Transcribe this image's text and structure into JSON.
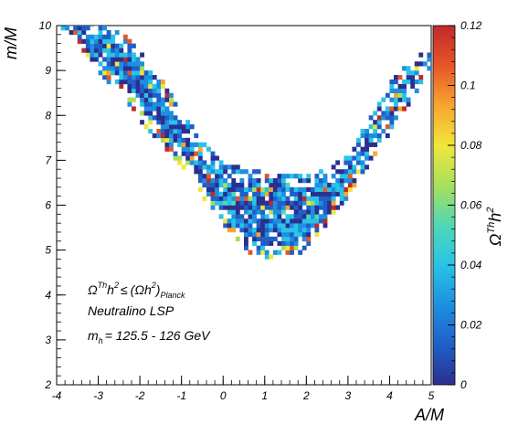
{
  "chart_data": {
    "type": "heatmap",
    "xlabel": "A/M",
    "ylabel": "m/M",
    "colorbar_label": "Ω Th h 2",
    "xlim": [
      -4,
      5
    ],
    "ylim": [
      2,
      10
    ],
    "zlim": [
      0,
      0.12
    ],
    "x_ticks": [
      "-4",
      "-3",
      "-2",
      "-1",
      "0",
      "1",
      "2",
      "3",
      "4",
      "5"
    ],
    "y_ticks": [
      "2",
      "3",
      "4",
      "5",
      "6",
      "7",
      "8",
      "9",
      "10"
    ],
    "z_ticks": [
      "0",
      "0.02",
      "0.04",
      "0.06",
      "0.08",
      "0.1",
      "0.12"
    ],
    "colormap": [
      "#2b2f8f",
      "#1f5fc8",
      "#1e8fe0",
      "#29c3e6",
      "#4fd8b4",
      "#a8e05a",
      "#f0e63c",
      "#f7a530",
      "#e85528",
      "#c02a2a"
    ],
    "annotations": {
      "constraint": {
        "omega": "Ω",
        "th": "Th",
        "h": "h",
        "two": "2",
        "le": "≤",
        "planck_lhs": "(Ωh",
        "planck_close": ")",
        "planck_sub": "Planck"
      },
      "lsp": "Neutralino LSP",
      "mh": {
        "m": "m",
        "sub": "h",
        "range": "= 125.5 - 126 GeV"
      }
    },
    "band_model": {
      "description_free": true,
      "lower_edge": [
        [
          -4,
          10.1
        ],
        [
          -3,
          9.0
        ],
        [
          -2,
          7.9
        ],
        [
          -1,
          6.85
        ],
        [
          -0.5,
          6.2
        ],
        [
          0,
          5.6
        ],
        [
          0.5,
          5.0
        ],
        [
          1,
          4.75
        ],
        [
          1.5,
          4.8
        ],
        [
          2,
          5.0
        ],
        [
          2.5,
          5.5
        ],
        [
          3,
          6.2
        ],
        [
          3.5,
          6.9
        ],
        [
          4,
          7.6
        ],
        [
          4.5,
          8.3
        ],
        [
          5,
          8.9
        ]
      ],
      "upper_edge": [
        [
          -4,
          10.1
        ],
        [
          -3,
          10.1
        ],
        [
          -2,
          9.6
        ],
        [
          -1,
          8.1
        ],
        [
          -0.5,
          7.4
        ],
        [
          0,
          7.0
        ],
        [
          0.5,
          6.8
        ],
        [
          1,
          6.75
        ],
        [
          1.5,
          6.7
        ],
        [
          2,
          6.7
        ],
        [
          2.5,
          6.8
        ],
        [
          3,
          7.1
        ],
        [
          3.5,
          7.9
        ],
        [
          4,
          8.7
        ],
        [
          4.5,
          9.3
        ],
        [
          5,
          9.4
        ]
      ],
      "cell_dx": 0.1,
      "cell_dy": 0.1
    }
  }
}
